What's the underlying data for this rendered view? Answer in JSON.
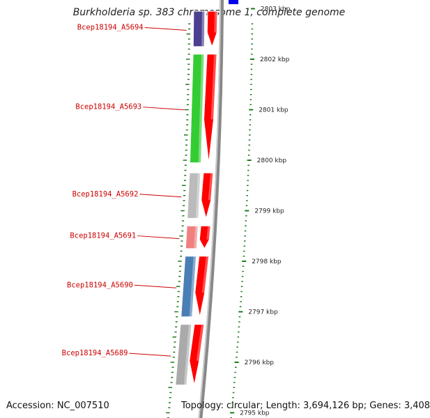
{
  "title": "Burkholderia sp. 383 chromosome 1, complete genome",
  "footer": {
    "accession": "Accession: NC_007510",
    "stats": "Topology: circular; Length: 3,694,126 bp; Genes: 3,408"
  },
  "scale": {
    "ticks": [
      {
        "label": "2803 kbp",
        "value": 2803
      },
      {
        "label": "2802 kbp",
        "value": 2802
      },
      {
        "label": "2801 kbp",
        "value": 2801
      },
      {
        "label": "2800 kbp",
        "value": 2800
      },
      {
        "label": "2799 kbp",
        "value": 2799
      },
      {
        "label": "2798 kbp",
        "value": 2798
      },
      {
        "label": "2797 kbp",
        "value": 2797
      },
      {
        "label": "2796 kbp",
        "value": 2796
      },
      {
        "label": "2795 kbp",
        "value": 2795
      }
    ]
  },
  "genes": [
    {
      "label": "Bcep18194_A5694",
      "start": 2802.95,
      "end": 2802.25,
      "color": "#4b3f8f"
    },
    {
      "label": "Bcep18194_A5693",
      "start": 2802.1,
      "end": 2799.95,
      "color": "#33cc33"
    },
    {
      "label": "Bcep18194_A5692",
      "start": 2799.75,
      "end": 2798.85,
      "color": "#bbbbbb"
    },
    {
      "label": "Bcep18194_A5691",
      "start": 2798.7,
      "end": 2798.25,
      "color": "#f08080"
    },
    {
      "label": "Bcep18194_A5690",
      "start": 2798.1,
      "end": 2796.9,
      "color": "#4a7fb5"
    },
    {
      "label": "Bcep18194_A5689",
      "start": 2796.75,
      "end": 2795.55,
      "color": "#aaaaaa"
    }
  ],
  "colors": {
    "cds": "#ff0000",
    "backbone": "#888888",
    "tick": "#1a7a1a",
    "label": "#cc0000",
    "top_feature": "#0000ee"
  }
}
